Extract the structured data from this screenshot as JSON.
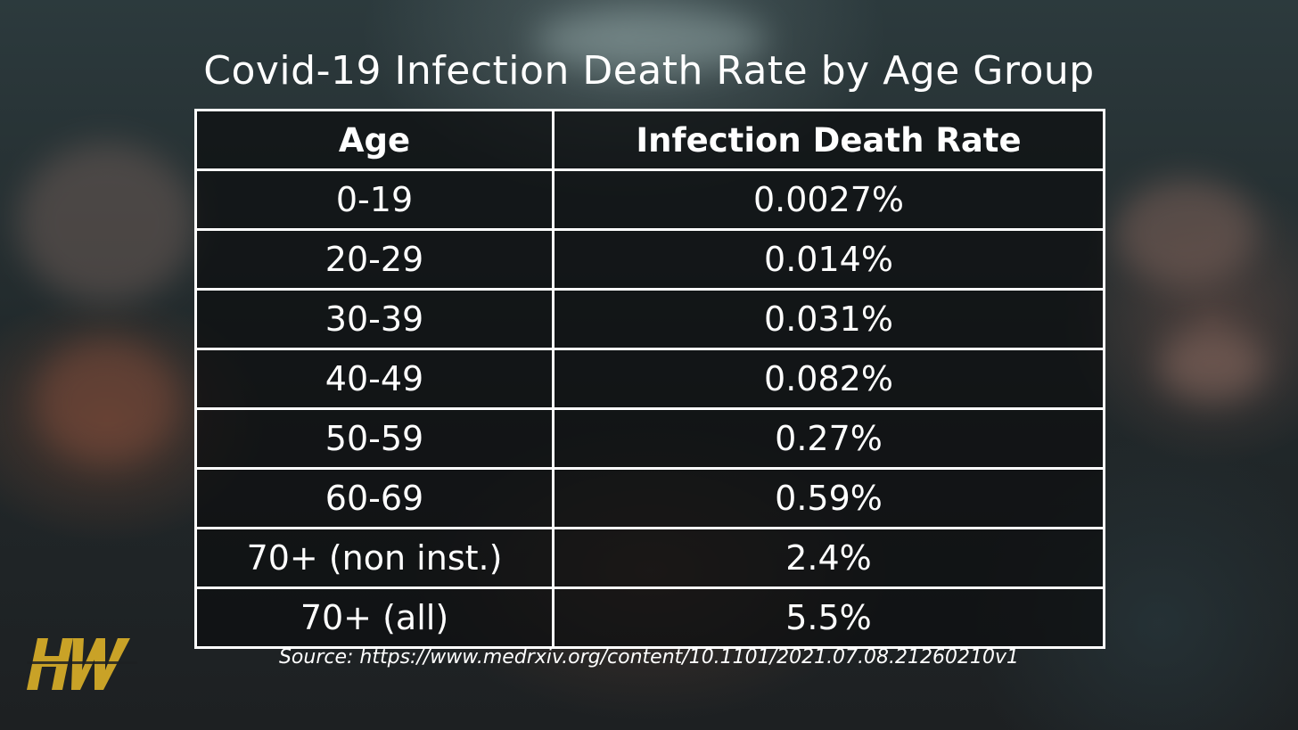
{
  "title": "Covid-19 Infection Death Rate by Age Group",
  "table": {
    "headers": [
      "Age",
      "Infection Death Rate"
    ],
    "rows": [
      [
        "0-19",
        "0.0027%"
      ],
      [
        "20-29",
        "0.014%"
      ],
      [
        "30-39",
        "0.031%"
      ],
      [
        "40-49",
        "0.082%"
      ],
      [
        "50-59",
        "0.27%"
      ],
      [
        "60-69",
        "0.59%"
      ],
      [
        "70+ (non inst.)",
        "2.4%"
      ],
      [
        "70+ (all)",
        "5.5%"
      ]
    ]
  },
  "source": "Source: https://www.medrxiv.org/content/10.1101/2021.07.08.21260210v1",
  "logo": {
    "text": "HW",
    "icon": "hw-logo-icon",
    "color": "#c9a227"
  },
  "colors": {
    "text": "#ffffff",
    "grid": "#ffffff",
    "cell_background": "#0c0e0f"
  }
}
